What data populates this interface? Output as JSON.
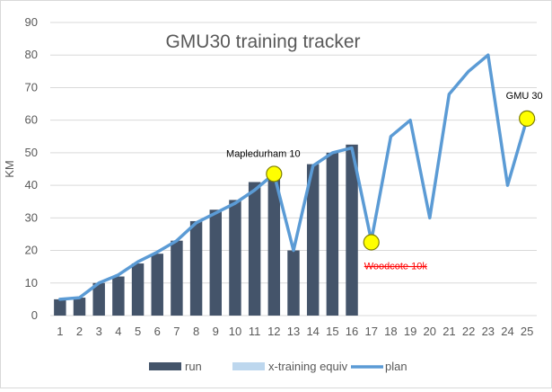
{
  "chart_data": {
    "type": "bar",
    "title": "GMU30 training tracker",
    "xlabel": "",
    "ylabel": "KM",
    "ylim": [
      0,
      90
    ],
    "yticks": [
      0,
      10,
      20,
      30,
      40,
      50,
      60,
      70,
      80,
      90
    ],
    "grid": true,
    "legend_position": "bottom",
    "categories": [
      "1",
      "2",
      "3",
      "4",
      "5",
      "6",
      "7",
      "8",
      "9",
      "10",
      "11",
      "12",
      "13",
      "14",
      "15",
      "16",
      "17",
      "18",
      "19",
      "20",
      "21",
      "22",
      "23",
      "24",
      "25"
    ],
    "series": [
      {
        "name": "run",
        "type": "bar",
        "color": "#44546a",
        "values": [
          5,
          5.5,
          10,
          12,
          16,
          19,
          23,
          29,
          32.5,
          35.5,
          41,
          42,
          20,
          46.5,
          50,
          52.5,
          null,
          null,
          null,
          null,
          null,
          null,
          null,
          null,
          null
        ]
      },
      {
        "name": "x-training equiv",
        "type": "bar",
        "color": "#bdd7ee",
        "values": [
          0,
          0,
          0,
          0,
          0,
          0,
          0,
          0,
          0,
          0,
          0,
          0,
          0,
          0,
          0,
          0,
          null,
          null,
          null,
          null,
          null,
          null,
          null,
          null,
          null
        ]
      },
      {
        "name": "plan",
        "type": "line",
        "color": "#5b9bd5",
        "values": [
          5,
          5.5,
          10,
          12.5,
          16.5,
          19.5,
          23,
          28.5,
          31.5,
          34.5,
          38.5,
          43.5,
          20,
          46,
          50,
          51.5,
          23,
          55,
          60,
          30,
          68,
          75,
          80,
          40,
          60.5
        ]
      }
    ],
    "markers": [
      {
        "x": "12",
        "y": 43.5,
        "label": "Mapledurham 10",
        "label_style": "normal"
      },
      {
        "x": "17",
        "y": 22.5,
        "label": "Woodcote 10k",
        "label_style": "struck-red"
      },
      {
        "x": "25",
        "y": 60.5,
        "label": "GMU 30",
        "label_style": "normal"
      }
    ],
    "colors": {
      "marker_fill": "#ffff00",
      "marker_stroke": "#7f7f00",
      "struck_label": "#ff0000",
      "grid": "#d9d9d9",
      "axis_text": "#595959",
      "title": "#595959"
    }
  }
}
